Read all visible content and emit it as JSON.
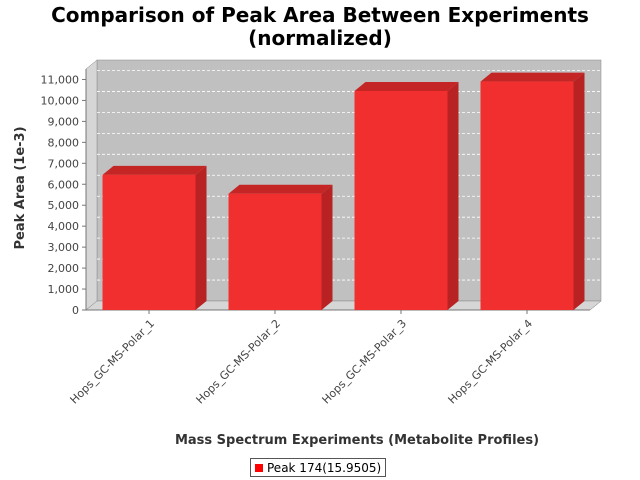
{
  "chart_data": {
    "type": "bar",
    "title": "Comparison of Peak Area Between Experiments",
    "subtitle": "(normalized)",
    "xlabel": "Mass Spectrum Experiments (Metabolite Profiles)",
    "ylabel": "Peak Area (1e-3)",
    "categories": [
      "Hops_GC-MS-Polar_1",
      "Hops_GC-MS-Polar_2",
      "Hops_GC-MS-Polar_3",
      "Hops_GC-MS-Polar_4"
    ],
    "series": [
      {
        "name": "Peak 174(15.9505)",
        "values": [
          6450,
          5550,
          10450,
          10900
        ]
      }
    ],
    "ylim": [
      0,
      11500
    ],
    "yticks": [
      0,
      1000,
      2000,
      3000,
      4000,
      5000,
      6000,
      7000,
      8000,
      9000,
      10000,
      11000
    ],
    "ytick_labels": [
      "0",
      "1,000",
      "2,000",
      "3,000",
      "4,000",
      "5,000",
      "6,000",
      "7,000",
      "8,000",
      "9,000",
      "10,000",
      "11,000"
    ],
    "grid": true,
    "legend_position": "bottom",
    "colors": {
      "bar": "#f22f2f",
      "bar_top": "#c42525",
      "bar_side": "#b82222",
      "plot_bg": "#c0c0c0",
      "plot_wall": "#d6d6d6",
      "legend_swatch": "#ff0000"
    }
  }
}
